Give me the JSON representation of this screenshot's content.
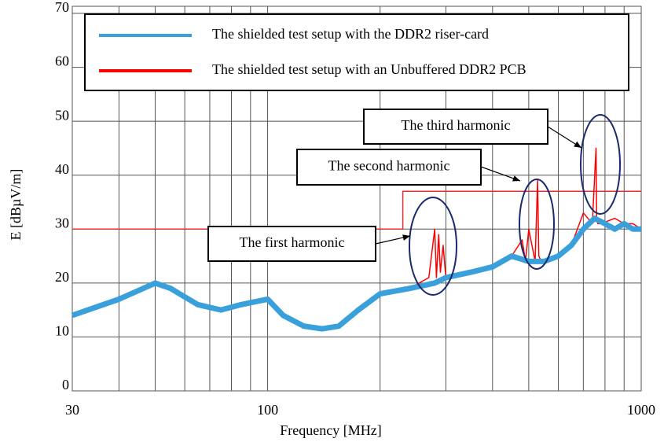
{
  "chart_data": {
    "type": "line",
    "xlabel": "Frequency [MHz]",
    "ylabel": "E  [dBµV/m]",
    "log_x": true,
    "grid": true,
    "xlim": [
      30,
      1000
    ],
    "xticks": [
      30,
      100,
      1000
    ],
    "xminor_ticks": [
      40,
      50,
      60,
      70,
      80,
      90,
      200,
      300,
      400,
      500,
      600,
      700,
      800,
      900
    ],
    "ylim": [
      0,
      70
    ],
    "yticks": [
      0,
      10,
      20,
      30,
      40,
      50,
      60,
      70
    ],
    "series": [
      {
        "name": "The shielded test setup with an Unbuffered DDR2 PCB",
        "color": "#ff0000",
        "x": [
          30,
          40,
          50,
          55,
          65,
          75,
          85,
          100,
          110,
          125,
          140,
          155,
          175,
          200,
          240,
          270,
          280,
          283,
          287,
          290,
          295,
          300,
          350,
          400,
          450,
          480,
          490,
          500,
          520,
          528,
          532,
          540,
          600,
          650,
          700,
          740,
          757,
          760,
          765,
          780,
          850,
          900,
          950,
          1000
        ],
        "values": [
          14,
          17,
          20,
          19,
          16,
          15,
          16,
          17,
          14,
          12,
          11.5,
          12,
          15,
          18,
          19,
          21,
          30,
          21,
          29,
          22,
          27,
          21,
          22,
          23,
          25,
          28,
          24,
          30,
          24,
          39,
          25,
          24,
          25,
          27,
          33,
          31,
          45,
          32,
          31,
          31,
          32,
          31,
          31,
          30
        ]
      },
      {
        "name": "The shielded test setup with the DDR2 riser-card",
        "color": "#3aa0dc",
        "x": [
          30,
          40,
          50,
          55,
          65,
          75,
          85,
          100,
          110,
          125,
          140,
          155,
          175,
          200,
          240,
          280,
          300,
          350,
          400,
          450,
          500,
          550,
          600,
          650,
          700,
          750,
          800,
          850,
          900,
          950,
          1000
        ],
        "values": [
          14,
          17,
          20,
          19,
          16,
          15,
          16,
          17,
          14,
          12,
          11.5,
          12,
          15,
          18,
          19,
          20,
          21,
          22,
          23,
          25,
          24,
          24,
          25,
          27,
          30,
          32,
          31,
          30,
          31,
          30,
          30
        ]
      }
    ],
    "limit_line": {
      "color": "#e03030",
      "x": [
        30,
        230,
        230,
        1000
      ],
      "values": [
        30,
        30,
        37,
        37
      ]
    },
    "annotations": [
      "The third harmonic",
      "The second harmonic",
      "The first harmonic"
    ]
  }
}
